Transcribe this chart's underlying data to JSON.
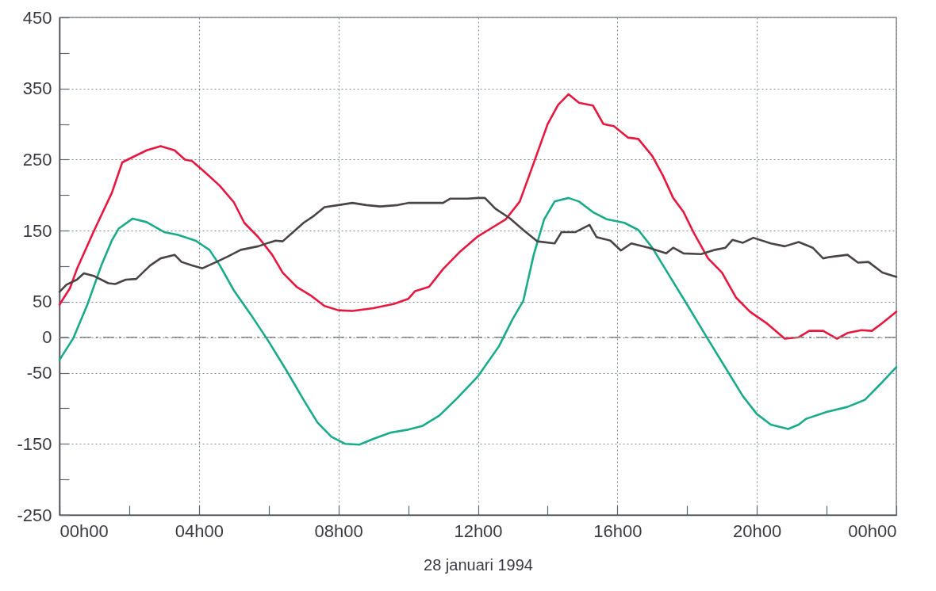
{
  "chart_data": {
    "type": "line",
    "xlabel": "28 januari 1994",
    "xlim": [
      "1994-01-28T00:00",
      "1994-01-29T00:00"
    ],
    "ylim": [
      -250,
      450
    ],
    "xticks": [
      {
        "value": "1994-01-28T00:00",
        "label": "00h00"
      },
      {
        "value": "1994-01-28T02:00",
        "label": null
      },
      {
        "value": "1994-01-28T04:00",
        "label": "04h00"
      },
      {
        "value": "1994-01-28T06:00",
        "label": null
      },
      {
        "value": "1994-01-28T08:00",
        "label": "08h00"
      },
      {
        "value": "1994-01-28T10:00",
        "label": null
      },
      {
        "value": "1994-01-28T12:00",
        "label": "12h00"
      },
      {
        "value": "1994-01-28T14:00",
        "label": null
      },
      {
        "value": "1994-01-28T16:00",
        "label": "16h00"
      },
      {
        "value": "1994-01-28T18:00",
        "label": null
      },
      {
        "value": "1994-01-28T20:00",
        "label": "20h00"
      },
      {
        "value": "1994-01-28T22:00",
        "label": null
      },
      {
        "value": "1994-01-29T00:00",
        "label": "00h00"
      }
    ],
    "yticks": [
      -250,
      {
        "value": -200,
        "label": null
      },
      -150,
      {
        "value": -100,
        "label": null
      },
      -50,
      0,
      50,
      {
        "value": 100,
        "label": null
      },
      150,
      {
        "value": 200,
        "label": null
      },
      250,
      {
        "value": 300,
        "label": null
      },
      350,
      {
        "value": 400,
        "label": null
      },
      450
    ],
    "grid": true,
    "marker": "none",
    "line_style": "solid",
    "ref_lines": [
      {
        "axis": "y",
        "value": 0,
        "color": "#8a8a8a",
        "line_style": "dashed"
      }
    ],
    "series": [
      {
        "color": "#e8173f",
        "x": [
          "1994-01-28T00:00",
          "1994-01-28T00:18",
          "1994-01-28T00:30",
          "1994-01-28T01:00",
          "1994-01-28T01:30",
          "1994-01-28T01:48",
          "1994-01-28T02:00",
          "1994-01-28T02:30",
          "1994-01-28T02:54",
          "1994-01-28T03:18",
          "1994-01-28T03:36",
          "1994-01-28T03:48",
          "1994-01-28T04:12",
          "1994-01-28T04:36",
          "1994-01-28T05:00",
          "1994-01-28T05:18",
          "1994-01-28T05:42",
          "1994-01-28T06:06",
          "1994-01-28T06:24",
          "1994-01-28T06:48",
          "1994-01-28T07:12",
          "1994-01-28T07:36",
          "1994-01-28T08:00",
          "1994-01-28T08:24",
          "1994-01-28T09:00",
          "1994-01-28T09:36",
          "1994-01-28T10:00",
          "1994-01-28T10:12",
          "1994-01-28T10:36",
          "1994-01-28T11:00",
          "1994-01-28T11:30",
          "1994-01-28T12:00",
          "1994-01-28T12:18",
          "1994-01-28T12:48",
          "1994-01-28T13:12",
          "1994-01-28T13:36",
          "1994-01-28T14:00",
          "1994-01-28T14:18",
          "1994-01-28T14:36",
          "1994-01-28T14:54",
          "1994-01-28T15:18",
          "1994-01-28T15:36",
          "1994-01-28T15:54",
          "1994-01-28T16:18",
          "1994-01-28T16:36",
          "1994-01-28T17:00",
          "1994-01-28T17:18",
          "1994-01-28T17:36",
          "1994-01-28T17:54",
          "1994-01-28T18:12",
          "1994-01-28T18:36",
          "1994-01-28T19:00",
          "1994-01-28T19:24",
          "1994-01-28T19:48",
          "1994-01-28T20:18",
          "1994-01-28T20:48",
          "1994-01-28T21:12",
          "1994-01-28T21:30",
          "1994-01-28T21:54",
          "1994-01-28T22:18",
          "1994-01-28T22:36",
          "1994-01-28T23:00",
          "1994-01-28T23:18",
          "1994-01-28T23:36",
          "1994-01-29T00:00"
        ],
        "values": [
          46,
          69,
          96,
          151,
          203,
          246,
          251,
          263,
          269,
          263,
          250,
          248,
          231,
          213,
          190,
          161,
          141,
          116,
          91,
          71,
          59,
          44,
          38,
          37,
          41,
          47,
          54,
          65,
          71,
          96,
          121,
          142,
          151,
          166,
          191,
          245,
          300,
          327,
          342,
          330,
          326,
          300,
          297,
          281,
          279,
          255,
          228,
          196,
          176,
          146,
          111,
          91,
          56,
          36,
          19,
          -2,
          0,
          9,
          9,
          -2,
          6,
          10,
          9,
          20,
          36
        ]
      },
      {
        "color": "#1aab8a",
        "x": [
          "1994-01-28T00:00",
          "1994-01-28T00:24",
          "1994-01-28T00:48",
          "1994-01-28T01:12",
          "1994-01-28T01:30",
          "1994-01-28T01:42",
          "1994-01-28T02:06",
          "1994-01-28T02:30",
          "1994-01-28T03:00",
          "1994-01-28T03:24",
          "1994-01-28T03:54",
          "1994-01-28T04:18",
          "1994-01-28T04:36",
          "1994-01-28T05:00",
          "1994-01-28T05:30",
          "1994-01-28T06:00",
          "1994-01-28T06:30",
          "1994-01-28T07:00",
          "1994-01-28T07:24",
          "1994-01-28T07:48",
          "1994-01-28T08:12",
          "1994-01-28T08:36",
          "1994-01-28T09:00",
          "1994-01-28T09:30",
          "1994-01-28T10:00",
          "1994-01-28T10:24",
          "1994-01-28T10:54",
          "1994-01-28T11:24",
          "1994-01-28T12:00",
          "1994-01-28T12:36",
          "1994-01-28T13:00",
          "1994-01-28T13:18",
          "1994-01-28T13:36",
          "1994-01-28T13:54",
          "1994-01-28T14:12",
          "1994-01-28T14:36",
          "1994-01-28T14:54",
          "1994-01-28T15:18",
          "1994-01-28T15:42",
          "1994-01-28T16:12",
          "1994-01-28T16:36",
          "1994-01-28T17:00",
          "1994-01-28T17:30",
          "1994-01-28T18:00",
          "1994-01-28T18:36",
          "1994-01-28T19:06",
          "1994-01-28T19:36",
          "1994-01-28T20:00",
          "1994-01-28T20:24",
          "1994-01-28T20:54",
          "1994-01-28T21:12",
          "1994-01-28T21:24",
          "1994-01-28T22:00",
          "1994-01-28T22:36",
          "1994-01-28T23:06",
          "1994-01-28T23:36",
          "1994-01-29T00:00"
        ],
        "values": [
          -32,
          -1,
          46,
          101,
          136,
          153,
          167,
          162,
          148,
          144,
          136,
          123,
          101,
          66,
          31,
          -6,
          -46,
          -88,
          -120,
          -140,
          -150,
          -151,
          -143,
          -134,
          -130,
          -125,
          -110,
          -86,
          -55,
          -13,
          26,
          51,
          116,
          166,
          191,
          196,
          191,
          176,
          166,
          161,
          151,
          126,
          86,
          46,
          -3,
          -43,
          -83,
          -108,
          -123,
          -129,
          -123,
          -115,
          -105,
          -98,
          -88,
          -63,
          -42
        ]
      },
      {
        "color": "#4a4544",
        "x": [
          "1994-01-28T00:00",
          "1994-01-28T00:12",
          "1994-01-28T00:30",
          "1994-01-28T00:42",
          "1994-01-28T01:00",
          "1994-01-28T01:24",
          "1994-01-28T01:36",
          "1994-01-28T01:54",
          "1994-01-28T02:12",
          "1994-01-28T02:36",
          "1994-01-28T02:54",
          "1994-01-28T03:18",
          "1994-01-28T03:30",
          "1994-01-28T03:48",
          "1994-01-28T04:06",
          "1994-01-28T04:30",
          "1994-01-28T04:48",
          "1994-01-28T05:12",
          "1994-01-28T05:42",
          "1994-01-28T06:00",
          "1994-01-28T06:12",
          "1994-01-28T06:24",
          "1994-01-28T06:42",
          "1994-01-28T07:00",
          "1994-01-28T07:18",
          "1994-01-28T07:36",
          "1994-01-28T08:00",
          "1994-01-28T08:24",
          "1994-01-28T08:48",
          "1994-01-28T09:12",
          "1994-01-28T09:42",
          "1994-01-28T10:00",
          "1994-01-28T10:30",
          "1994-01-28T11:00",
          "1994-01-28T11:12",
          "1994-01-28T11:42",
          "1994-01-28T12:00",
          "1994-01-28T12:12",
          "1994-01-28T12:30",
          "1994-01-28T12:54",
          "1994-01-28T13:18",
          "1994-01-28T13:42",
          "1994-01-28T14:12",
          "1994-01-28T14:24",
          "1994-01-28T14:48",
          "1994-01-28T15:12",
          "1994-01-28T15:24",
          "1994-01-28T15:48",
          "1994-01-28T16:06",
          "1994-01-28T16:24",
          "1994-01-28T16:54",
          "1994-01-28T17:24",
          "1994-01-28T17:36",
          "1994-01-28T17:54",
          "1994-01-28T18:24",
          "1994-01-28T18:48",
          "1994-01-28T19:06",
          "1994-01-28T19:18",
          "1994-01-28T19:36",
          "1994-01-28T19:54",
          "1994-01-28T20:24",
          "1994-01-28T20:48",
          "1994-01-28T21:12",
          "1994-01-28T21:36",
          "1994-01-28T21:54",
          "1994-01-28T22:06",
          "1994-01-28T22:36",
          "1994-01-28T22:54",
          "1994-01-28T23:12",
          "1994-01-28T23:36",
          "1994-01-29T00:00"
        ],
        "values": [
          64,
          74,
          81,
          90,
          86,
          76,
          75,
          81,
          82,
          101,
          111,
          116,
          106,
          101,
          97,
          106,
          113,
          123,
          128,
          133,
          136,
          135,
          148,
          161,
          171,
          183,
          186,
          189,
          186,
          184,
          186,
          189,
          189,
          189,
          195,
          195,
          196,
          196,
          181,
          168,
          151,
          135,
          132,
          148,
          148,
          158,
          141,
          136,
          122,
          132,
          126,
          118,
          126,
          118,
          117,
          123,
          126,
          137,
          133,
          140,
          132,
          128,
          134,
          126,
          111,
          113,
          116,
          105,
          106,
          91,
          85
        ]
      }
    ]
  }
}
